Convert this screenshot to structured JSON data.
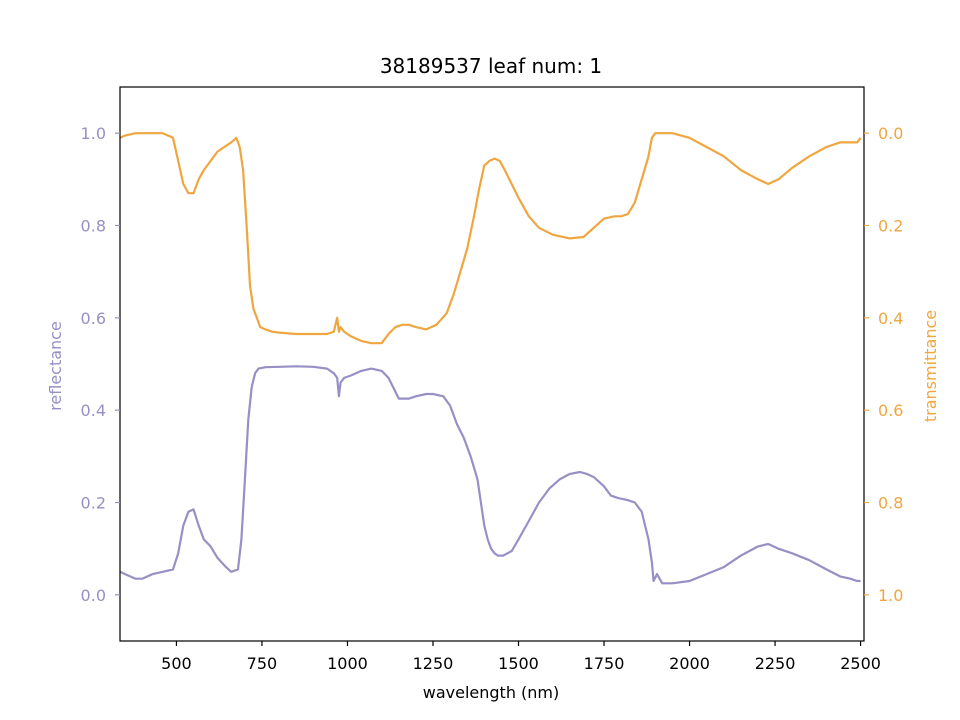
{
  "chart_data": {
    "type": "line",
    "title": "38189537 leaf num: 1",
    "xlabel": "wavelength (nm)",
    "ylabel_left": "reflectance",
    "ylabel_right": "transmittance",
    "xlim": [
      335,
      2510
    ],
    "ylim_left": [
      -0.1,
      1.1
    ],
    "ylim_right": [
      1.1,
      -0.1
    ],
    "right_axis_inverted": true,
    "x_ticks": [
      500,
      750,
      1000,
      1250,
      1500,
      1750,
      2000,
      2250,
      2500
    ],
    "y_ticks_left": [
      0.0,
      0.2,
      0.4,
      0.6,
      0.8,
      1.0
    ],
    "y_ticks_right": [
      0.0,
      0.2,
      0.4,
      0.6,
      0.8,
      1.0
    ],
    "grid": false,
    "colors": {
      "reflectance": "#9690c5",
      "transmittance": "#f0a640",
      "axis": "#000000"
    },
    "series": [
      {
        "name": "reflectance",
        "axis": "left",
        "x": [
          335,
          350,
          380,
          400,
          430,
          460,
          490,
          505,
          520,
          535,
          550,
          565,
          580,
          600,
          620,
          645,
          660,
          680,
          690,
          700,
          710,
          720,
          730,
          740,
          760,
          800,
          850,
          900,
          940,
          960,
          970,
          975,
          980,
          990,
          1010,
          1040,
          1070,
          1100,
          1120,
          1140,
          1150,
          1160,
          1180,
          1200,
          1230,
          1250,
          1280,
          1300,
          1320,
          1340,
          1360,
          1380,
          1390,
          1400,
          1410,
          1420,
          1430,
          1440,
          1455,
          1480,
          1500,
          1530,
          1560,
          1590,
          1620,
          1650,
          1680,
          1700,
          1720,
          1750,
          1770,
          1790,
          1820,
          1840,
          1860,
          1880,
          1890,
          1895,
          1905,
          1920,
          1950,
          2000,
          2050,
          2100,
          2150,
          2200,
          2230,
          2260,
          2300,
          2350,
          2400,
          2440,
          2470,
          2490,
          2500
        ],
        "y": [
          0.05,
          0.045,
          0.035,
          0.035,
          0.045,
          0.05,
          0.055,
          0.09,
          0.15,
          0.18,
          0.185,
          0.15,
          0.12,
          0.105,
          0.08,
          0.06,
          0.05,
          0.055,
          0.12,
          0.25,
          0.38,
          0.45,
          0.48,
          0.49,
          0.493,
          0.494,
          0.495,
          0.494,
          0.49,
          0.48,
          0.47,
          0.43,
          0.46,
          0.47,
          0.475,
          0.485,
          0.49,
          0.485,
          0.47,
          0.44,
          0.425,
          0.425,
          0.425,
          0.43,
          0.435,
          0.435,
          0.43,
          0.41,
          0.37,
          0.34,
          0.3,
          0.25,
          0.2,
          0.15,
          0.12,
          0.1,
          0.09,
          0.085,
          0.085,
          0.095,
          0.12,
          0.16,
          0.2,
          0.23,
          0.25,
          0.262,
          0.266,
          0.262,
          0.255,
          0.235,
          0.215,
          0.21,
          0.205,
          0.2,
          0.18,
          0.12,
          0.07,
          0.03,
          0.045,
          0.025,
          0.025,
          0.03,
          0.045,
          0.06,
          0.085,
          0.105,
          0.11,
          0.1,
          0.09,
          0.075,
          0.055,
          0.04,
          0.035,
          0.03,
          0.03
        ]
      },
      {
        "name": "transmittance",
        "axis": "right",
        "x": [
          335,
          350,
          380,
          400,
          430,
          460,
          490,
          505,
          520,
          535,
          550,
          565,
          580,
          600,
          620,
          640,
          660,
          675,
          685,
          695,
          705,
          715,
          725,
          735,
          745,
          760,
          780,
          800,
          850,
          900,
          940,
          960,
          970,
          975,
          980,
          990,
          1010,
          1040,
          1070,
          1100,
          1120,
          1140,
          1160,
          1180,
          1200,
          1230,
          1260,
          1290,
          1310,
          1330,
          1350,
          1370,
          1385,
          1400,
          1415,
          1430,
          1445,
          1460,
          1480,
          1500,
          1530,
          1560,
          1600,
          1650,
          1690,
          1720,
          1750,
          1780,
          1800,
          1820,
          1840,
          1860,
          1880,
          1890,
          1900,
          1920,
          1950,
          2000,
          2050,
          2100,
          2150,
          2200,
          2230,
          2260,
          2300,
          2350,
          2400,
          2440,
          2470,
          2490,
          2500
        ],
        "y": [
          0.01,
          0.005,
          0.0,
          0.0,
          0.0,
          0.0,
          0.01,
          0.06,
          0.11,
          0.13,
          0.13,
          0.1,
          0.08,
          0.06,
          0.04,
          0.03,
          0.02,
          0.01,
          0.03,
          0.08,
          0.2,
          0.33,
          0.38,
          0.4,
          0.42,
          0.425,
          0.43,
          0.432,
          0.435,
          0.435,
          0.435,
          0.43,
          0.4,
          0.43,
          0.42,
          0.43,
          0.44,
          0.45,
          0.455,
          0.455,
          0.435,
          0.42,
          0.415,
          0.415,
          0.42,
          0.425,
          0.415,
          0.39,
          0.35,
          0.3,
          0.25,
          0.18,
          0.12,
          0.07,
          0.06,
          0.055,
          0.06,
          0.08,
          0.11,
          0.14,
          0.18,
          0.205,
          0.22,
          0.228,
          0.225,
          0.205,
          0.185,
          0.18,
          0.18,
          0.175,
          0.15,
          0.1,
          0.05,
          0.01,
          0.0,
          0.0,
          0.0,
          0.01,
          0.03,
          0.05,
          0.08,
          0.1,
          0.11,
          0.1,
          0.075,
          0.05,
          0.03,
          0.02,
          0.02,
          0.02,
          0.01
        ]
      }
    ]
  }
}
